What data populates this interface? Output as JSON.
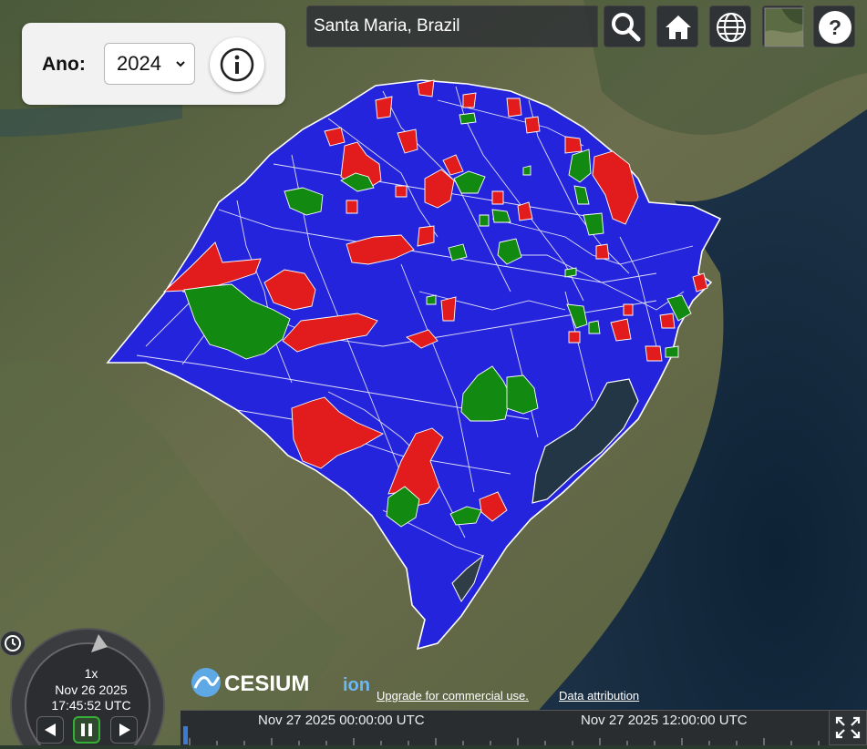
{
  "search": {
    "value": "Santa Maria, Brazil"
  },
  "year_panel": {
    "label": "Ano:",
    "selected_year": "2024"
  },
  "toolbar": {
    "search_icon": "magnifier-icon",
    "home_icon": "home-icon",
    "scene_mode_icon": "globe-icon",
    "base_layer_icon": "imagery-thumbnail-icon",
    "help_icon": "question-icon"
  },
  "animation": {
    "speed": "1x",
    "date": "Nov 26 2025",
    "time": "17:45:52 UTC"
  },
  "timeline": {
    "labels": [
      "Nov 27 2025 00:00:00 UTC",
      "Nov 27 2025 12:00:00 UTC"
    ]
  },
  "credits": {
    "logo_main": "CESIUM",
    "logo_sub": "ion",
    "upgrade_link": "Upgrade for commercial use.",
    "attribution_link": "Data attribution"
  },
  "colors": {
    "blue": "#2222dd",
    "red": "#e02020",
    "green": "#118811",
    "border": "#ffffff",
    "panel": "#303336"
  }
}
